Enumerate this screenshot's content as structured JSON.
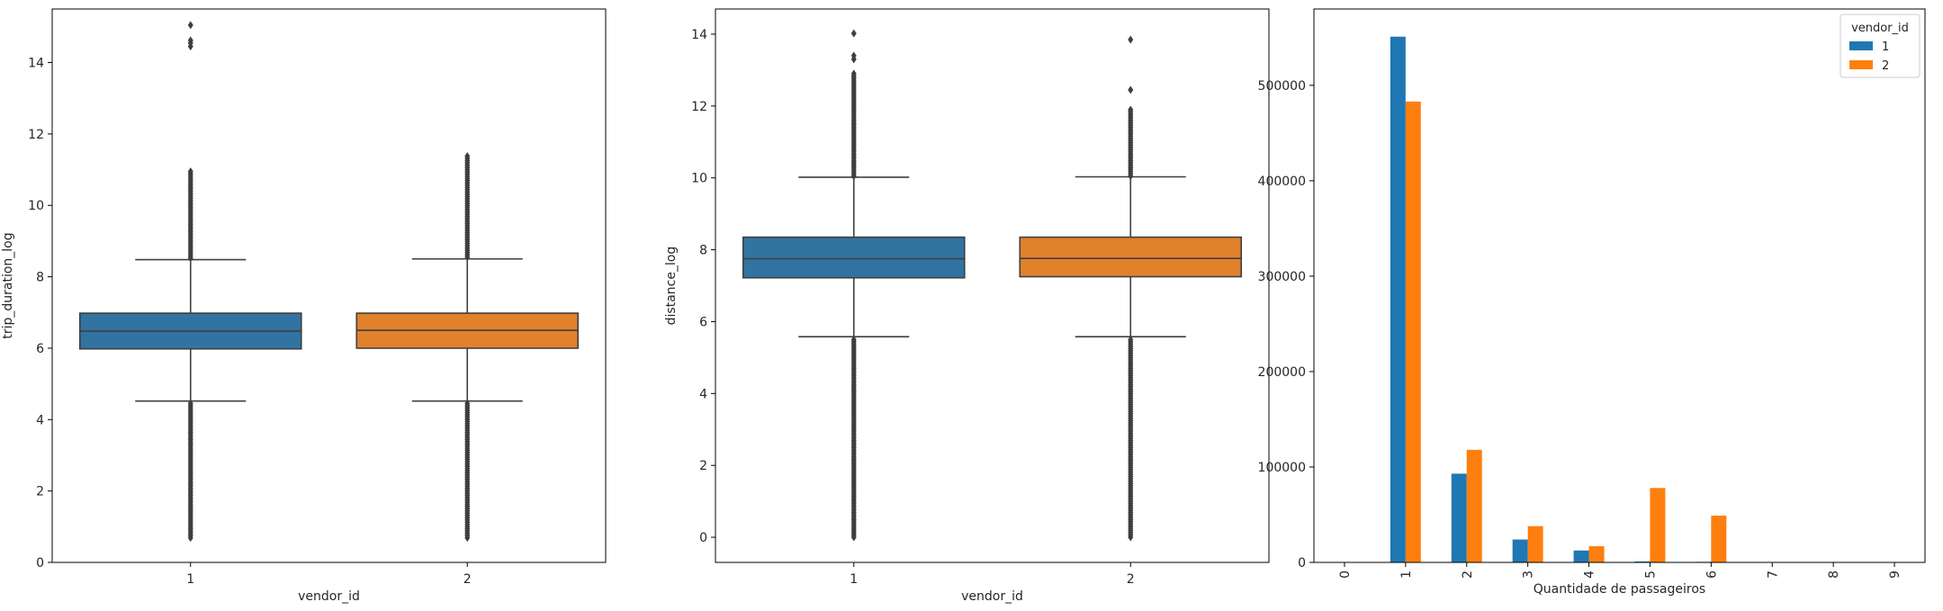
{
  "chart_data": [
    {
      "type": "box",
      "xlabel": "vendor_id",
      "ylabel": "trip_duration_log",
      "categories": [
        "1",
        "2"
      ],
      "ylim": [
        0,
        15.5
      ],
      "yticks": [
        0,
        2,
        4,
        6,
        8,
        10,
        12,
        14
      ],
      "colors": [
        "#3274a1",
        "#e1812c"
      ],
      "boxes": [
        {
          "category": "1",
          "whisker_low": 4.52,
          "q1": 5.98,
          "median": 6.48,
          "q3": 6.98,
          "whisker_high": 8.48,
          "outliers_low_range": [
            0.69,
            4.45
          ],
          "outliers_high_range": [
            8.52,
            10.95
          ],
          "outliers_extra": [
            14.45,
            14.55,
            14.62,
            15.05
          ]
        },
        {
          "category": "2",
          "whisker_low": 4.52,
          "q1": 6.0,
          "median": 6.5,
          "q3": 6.98,
          "whisker_high": 8.5,
          "outliers_low_range": [
            0.69,
            4.45
          ],
          "outliers_high_range": [
            8.55,
            11.38
          ],
          "outliers_extra": []
        }
      ]
    },
    {
      "type": "box",
      "xlabel": "vendor_id",
      "ylabel": "distance_log",
      "categories": [
        "1",
        "2"
      ],
      "ylim": [
        -0.7,
        14.7
      ],
      "yticks": [
        0,
        2,
        4,
        6,
        8,
        10,
        12,
        14
      ],
      "colors": [
        "#3274a1",
        "#e1812c"
      ],
      "boxes": [
        {
          "category": "1",
          "whisker_low": 5.58,
          "q1": 7.22,
          "median": 7.75,
          "q3": 8.35,
          "whisker_high": 10.02,
          "outliers_low_range": [
            0.0,
            5.5
          ],
          "outliers_high_range": [
            10.05,
            12.9
          ],
          "outliers_extra": [
            13.3,
            13.4,
            14.02
          ]
        },
        {
          "category": "2",
          "whisker_low": 5.58,
          "q1": 7.25,
          "median": 7.76,
          "q3": 8.35,
          "whisker_high": 10.03,
          "outliers_low_range": [
            0.0,
            5.5
          ],
          "outliers_high_range": [
            10.05,
            11.9
          ],
          "outliers_extra": [
            12.45,
            13.85
          ]
        }
      ]
    },
    {
      "type": "bar",
      "xlabel": "Quantidade de passageiros",
      "ylabel": "",
      "categories": [
        "0",
        "1",
        "2",
        "3",
        "4",
        "5",
        "6",
        "7",
        "8",
        "9"
      ],
      "ylim": [
        0,
        580000
      ],
      "yticks": [
        0,
        100000,
        200000,
        300000,
        400000,
        500000
      ],
      "legend": {
        "title": "vendor_id",
        "placement": "top-right"
      },
      "series": [
        {
          "name": "1",
          "color": "#1f77b4",
          "values": [
            20,
            551000,
            93000,
            24000,
            12500,
            1000,
            600,
            0,
            0,
            0
          ]
        },
        {
          "name": "2",
          "color": "#ff7f0e",
          "values": [
            20,
            483000,
            118000,
            38000,
            17000,
            78000,
            49000,
            3,
            1,
            1
          ]
        }
      ]
    }
  ]
}
